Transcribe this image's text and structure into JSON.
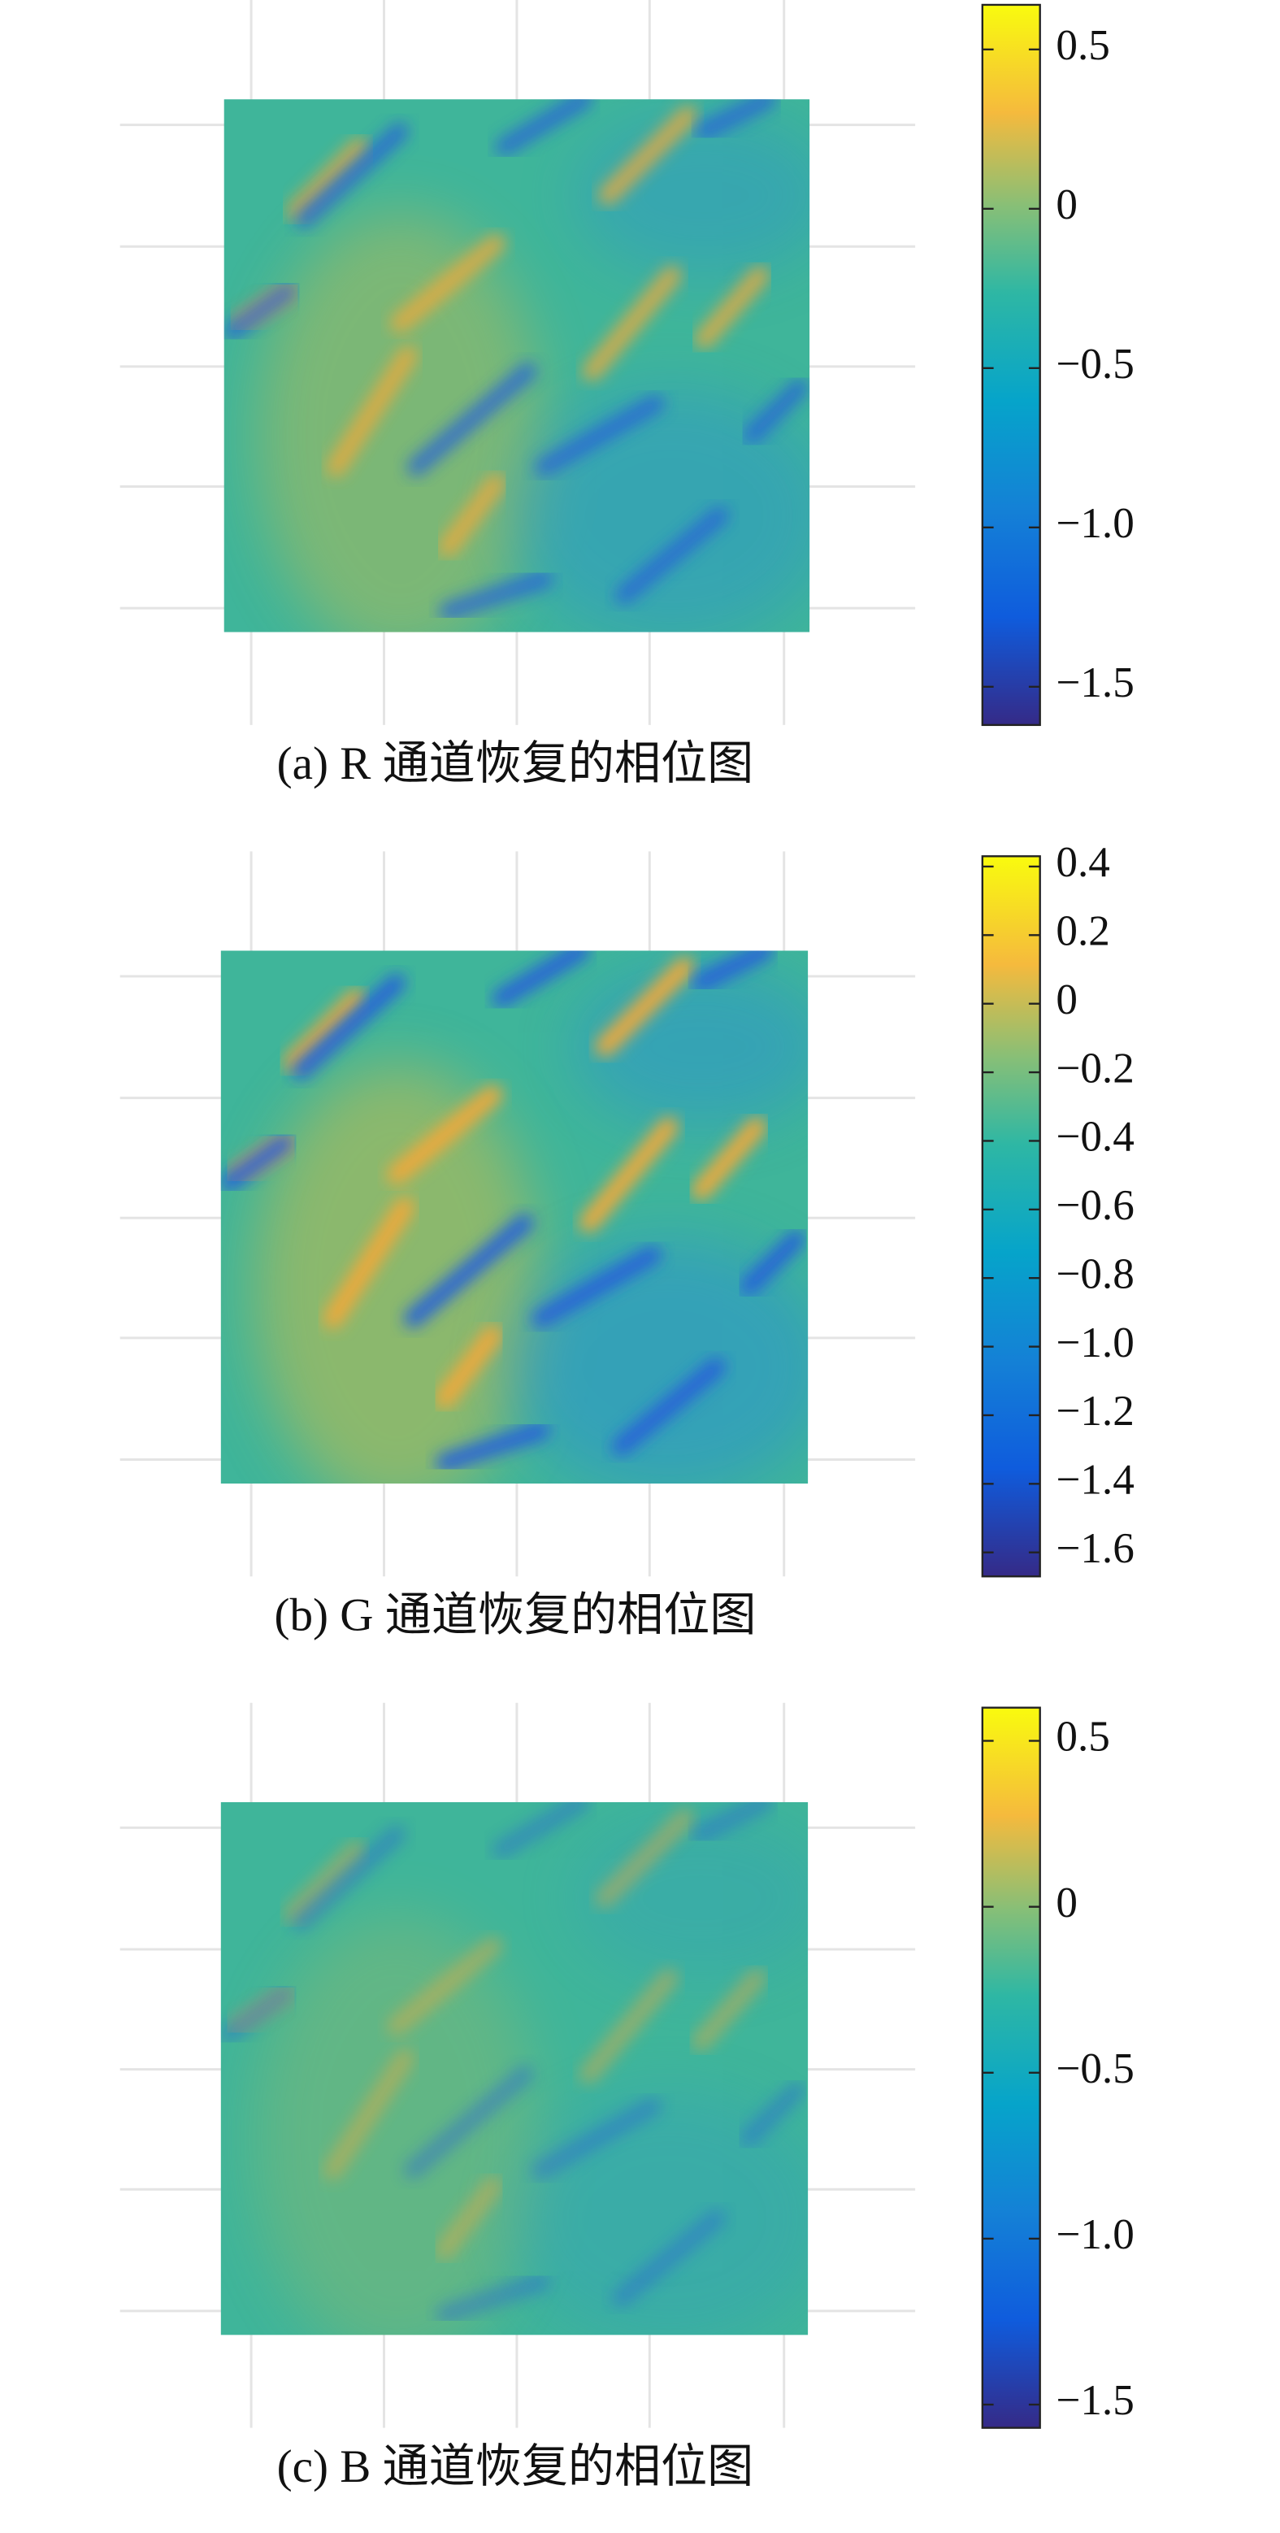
{
  "chart_data": [
    {
      "type": "heatmap",
      "title": "(a) R 通道恢复的相位图",
      "ylim": [
        -1.62,
        0.64
      ],
      "yticks": [
        0.5,
        0,
        {
          "value": -0.5,
          "label": "−0.5"
        },
        {
          "value": -1.0,
          "label": "−1.0"
        },
        {
          "value": -1.5,
          "label": "−1.5"
        }
      ]
    },
    {
      "type": "heatmap",
      "title": "(b) G 通道恢复的相位图",
      "ylim": [
        -1.67,
        0.43
      ],
      "yticks": [
        0.4,
        0.2,
        0,
        {
          "value": -0.2,
          "label": "−0.2"
        },
        {
          "value": -0.4,
          "label": "−0.4"
        },
        {
          "value": -0.6,
          "label": "−0.6"
        },
        {
          "value": -0.8,
          "label": "−0.8"
        },
        {
          "value": -1.0,
          "label": "−1.0"
        },
        {
          "value": -1.2,
          "label": "−1.2"
        },
        {
          "value": -1.4,
          "label": "−1.4"
        },
        {
          "value": -1.6,
          "label": "−1.6"
        }
      ]
    },
    {
      "type": "heatmap",
      "title": "(c) B 通道恢复的相位图",
      "ylim": [
        -1.57,
        0.6
      ],
      "yticks": [
        0.5,
        0,
        {
          "value": -0.5,
          "label": "−0.5"
        },
        {
          "value": -1.0,
          "label": "−1.0"
        },
        {
          "value": -1.5,
          "label": "−1.5"
        }
      ]
    }
  ]
}
